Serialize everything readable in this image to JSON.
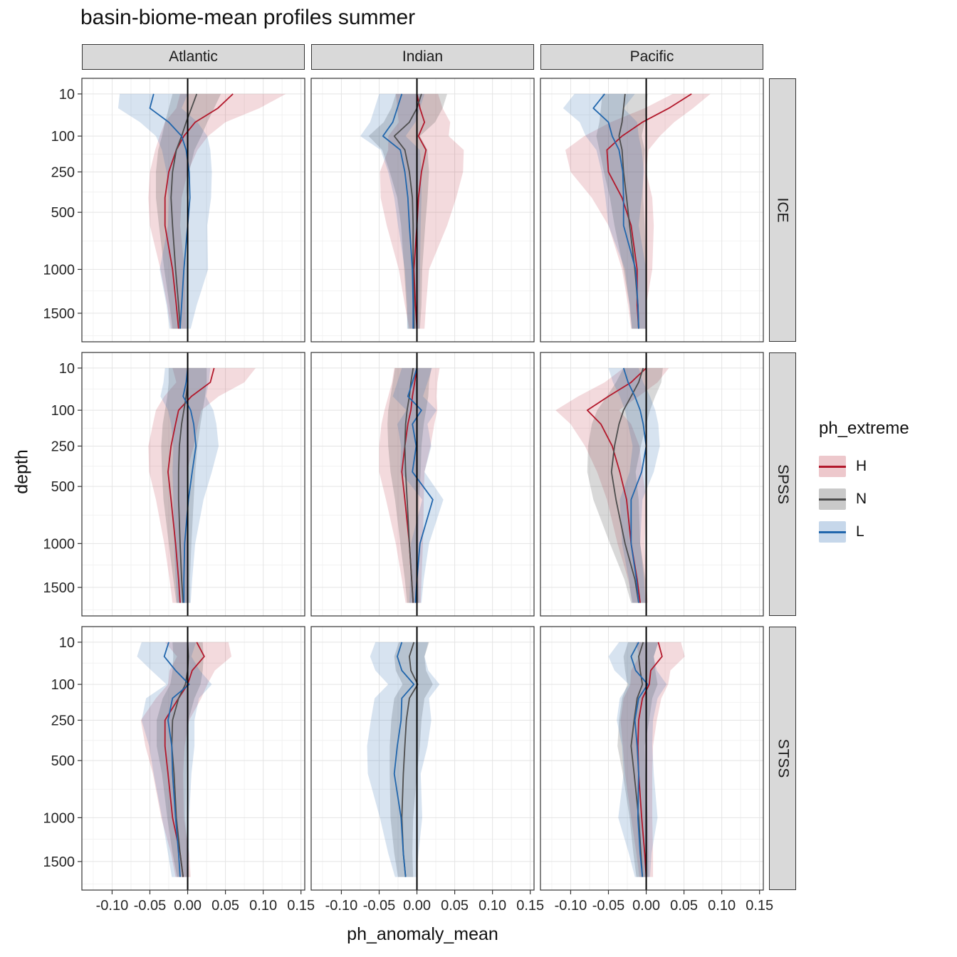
{
  "title": "basin-biome-mean profiles summer",
  "axes": {
    "x_label": "ph_anomaly_mean",
    "y_label": "depth",
    "x_ticks": [
      "-0.10",
      "-0.05",
      "0.00",
      "0.05",
      "0.10",
      "0.15"
    ],
    "x_tick_values": [
      -0.1,
      -0.05,
      0.0,
      0.05,
      0.1,
      0.15
    ],
    "y_ticks": [
      "10",
      "100",
      "250",
      "500",
      "1000",
      "1500"
    ],
    "y_tick_values": [
      10,
      100,
      250,
      500,
      1000,
      1500
    ],
    "x_domain": [
      -0.14,
      0.155
    ],
    "y_depth_domain": [
      0.4,
      1880
    ],
    "y_scale": "sqrt"
  },
  "facets": {
    "columns": [
      "Atlantic",
      "Indian",
      "Pacific"
    ],
    "rows": [
      "ICE",
      "SPSS",
      "STSS"
    ]
  },
  "legend": {
    "title": "ph_extreme",
    "entries": [
      {
        "label": "H"
      },
      {
        "label": "N"
      },
      {
        "label": "L"
      }
    ]
  },
  "chart_data": {
    "type": "line",
    "orientation": "vertical-depth-profile",
    "title": "basin-biome-mean profiles summer",
    "xlabel": "ph_anomaly_mean",
    "ylabel": "depth",
    "xlim": [
      -0.14,
      0.155
    ],
    "refline_x": 0,
    "grid": true,
    "legend_position": "right",
    "series_styles": {
      "H": {
        "color": "#b2182b",
        "ribbon_opacity": 0.16
      },
      "N": {
        "color": "#4d4d4d",
        "ribbon_opacity": 0.22
      },
      "L": {
        "color": "#2166ac",
        "ribbon_opacity": 0.18
      }
    },
    "depths": [
      10,
      30,
      60,
      100,
      150,
      250,
      400,
      600,
      1000,
      1400,
      1700
    ],
    "panels": [
      {
        "basin": "Atlantic",
        "biome": "ICE",
        "series": [
          {
            "name": "H",
            "values": [
              0.06,
              0.04,
              0.01,
              -0.005,
              -0.015,
              -0.025,
              -0.03,
              -0.03,
              -0.02,
              -0.015,
              -0.012
            ],
            "band": [
              0.07,
              0.055,
              0.04,
              0.032,
              0.028,
              0.025,
              0.022,
              0.02,
              0.016,
              0.012,
              0.01
            ]
          },
          {
            "name": "N",
            "values": [
              0.012,
              0.005,
              -0.002,
              -0.008,
              -0.015,
              -0.02,
              -0.022,
              -0.02,
              -0.016,
              -0.012,
              -0.01
            ],
            "band": [
              0.032,
              0.03,
              0.028,
              0.026,
              0.024,
              0.022,
              0.02,
              0.018,
              0.015,
              0.012,
              0.01
            ]
          },
          {
            "name": "L",
            "values": [
              -0.045,
              -0.05,
              -0.025,
              -0.008,
              -0.002,
              0.002,
              0.003,
              0.0,
              -0.005,
              -0.008,
              -0.01
            ],
            "band": [
              0.045,
              0.042,
              0.038,
              0.034,
              0.032,
              0.03,
              0.028,
              0.026,
              0.032,
              0.02,
              0.014
            ]
          }
        ]
      },
      {
        "basin": "Indian",
        "biome": "ICE",
        "series": [
          {
            "name": "H",
            "values": [
              0.0,
              0.004,
              0.01,
              0.002,
              0.012,
              0.006,
              0.002,
              0.0,
              -0.004,
              -0.002,
              0.0
            ],
            "band": [
              0.028,
              0.03,
              0.034,
              0.04,
              0.05,
              0.055,
              0.05,
              0.04,
              0.02,
              0.014,
              0.01
            ]
          },
          {
            "name": "N",
            "values": [
              0.006,
              0.0,
              -0.01,
              -0.03,
              -0.016,
              -0.01,
              -0.006,
              -0.005,
              -0.005,
              -0.004,
              -0.004
            ],
            "band": [
              0.034,
              0.034,
              0.034,
              0.034,
              0.03,
              0.026,
              0.02,
              0.016,
              0.012,
              0.01,
              0.008
            ]
          },
          {
            "name": "L",
            "values": [
              -0.02,
              -0.026,
              -0.032,
              -0.045,
              -0.022,
              -0.016,
              -0.012,
              -0.01,
              -0.006,
              -0.005,
              -0.005
            ],
            "band": [
              0.03,
              0.03,
              0.03,
              0.03,
              0.026,
              0.022,
              0.018,
              0.015,
              0.01,
              0.008,
              0.008
            ]
          }
        ]
      },
      {
        "basin": "Pacific",
        "biome": "ICE",
        "series": [
          {
            "name": "H",
            "values": [
              0.06,
              0.03,
              -0.005,
              -0.032,
              -0.052,
              -0.05,
              -0.032,
              -0.02,
              -0.012,
              -0.012,
              -0.01
            ],
            "band": [
              0.025,
              0.032,
              0.042,
              0.05,
              0.055,
              0.05,
              0.04,
              0.03,
              0.02,
              0.012,
              0.01
            ]
          },
          {
            "name": "N",
            "values": [
              -0.028,
              -0.03,
              -0.032,
              -0.036,
              -0.032,
              -0.03,
              -0.026,
              -0.022,
              -0.015,
              -0.011,
              -0.01
            ],
            "band": [
              0.03,
              0.03,
              0.03,
              0.03,
              0.03,
              0.026,
              0.022,
              0.02,
              0.015,
              0.011,
              0.009
            ]
          },
          {
            "name": "L",
            "values": [
              -0.055,
              -0.07,
              -0.05,
              -0.045,
              -0.036,
              -0.031,
              -0.03,
              -0.03,
              -0.014,
              -0.011,
              -0.01
            ],
            "band": [
              0.04,
              0.04,
              0.038,
              0.035,
              0.03,
              0.028,
              0.024,
              0.02,
              0.014,
              0.011,
              0.009
            ]
          }
        ]
      },
      {
        "basin": "Atlantic",
        "biome": "SPSS",
        "series": [
          {
            "name": "H",
            "values": [
              0.035,
              0.03,
              0.005,
              -0.012,
              -0.016,
              -0.022,
              -0.026,
              -0.022,
              -0.016,
              -0.012,
              -0.01
            ],
            "band": [
              0.055,
              0.045,
              0.036,
              0.03,
              0.03,
              0.03,
              0.025,
              0.02,
              0.015,
              0.012,
              0.01
            ]
          },
          {
            "name": "N",
            "values": [
              0.0,
              0.0,
              -0.002,
              -0.005,
              -0.008,
              -0.011,
              -0.012,
              -0.012,
              -0.01,
              -0.008,
              -0.006
            ],
            "band": [
              0.025,
              0.025,
              0.025,
              0.025,
              0.025,
              0.024,
              0.022,
              0.02,
              0.015,
              0.011,
              0.009
            ]
          },
          {
            "name": "L",
            "values": [
              0.0,
              -0.002,
              -0.006,
              0.004,
              0.008,
              0.011,
              0.006,
              0.001,
              -0.004,
              -0.005,
              -0.005
            ],
            "band": [
              0.03,
              0.03,
              0.03,
              0.03,
              0.03,
              0.03,
              0.026,
              0.02,
              0.014,
              0.011,
              0.009
            ]
          }
        ]
      },
      {
        "basin": "Indian",
        "biome": "SPSS",
        "series": [
          {
            "name": "H",
            "values": [
              0.0,
              -0.003,
              -0.006,
              -0.008,
              -0.012,
              -0.016,
              -0.02,
              -0.016,
              -0.01,
              -0.007,
              -0.005
            ],
            "band": [
              0.03,
              0.03,
              0.032,
              0.035,
              0.035,
              0.034,
              0.03,
              0.025,
              0.018,
              0.013,
              0.01
            ]
          },
          {
            "name": "N",
            "values": [
              -0.005,
              -0.008,
              -0.01,
              -0.013,
              -0.015,
              -0.016,
              -0.015,
              -0.013,
              -0.01,
              -0.007,
              -0.005
            ],
            "band": [
              0.024,
              0.024,
              0.025,
              0.025,
              0.024,
              0.022,
              0.02,
              0.016,
              0.012,
              0.009,
              0.008
            ]
          },
          {
            "name": "L",
            "values": [
              0.0,
              -0.006,
              -0.012,
              0.006,
              -0.006,
              -0.001,
              -0.006,
              0.021,
              0.004,
              0.0,
              -0.002
            ],
            "band": [
              0.02,
              0.02,
              0.02,
              0.02,
              0.02,
              0.02,
              0.016,
              0.014,
              0.012,
              0.009,
              0.008
            ]
          }
        ]
      },
      {
        "basin": "Pacific",
        "biome": "SPSS",
        "series": [
          {
            "name": "H",
            "values": [
              0.0,
              -0.02,
              -0.05,
              -0.078,
              -0.06,
              -0.045,
              -0.035,
              -0.026,
              -0.02,
              -0.012,
              -0.008
            ],
            "band": [
              0.03,
              0.035,
              0.04,
              0.042,
              0.04,
              0.036,
              0.03,
              0.026,
              0.018,
              0.012,
              0.01
            ]
          },
          {
            "name": "N",
            "values": [
              -0.004,
              -0.01,
              -0.02,
              -0.03,
              -0.036,
              -0.042,
              -0.046,
              -0.04,
              -0.028,
              -0.015,
              -0.01
            ],
            "band": [
              0.026,
              0.03,
              0.032,
              0.035,
              0.036,
              0.035,
              0.032,
              0.03,
              0.02,
              0.014,
              0.01
            ]
          },
          {
            "name": "L",
            "values": [
              -0.03,
              -0.024,
              -0.015,
              -0.008,
              -0.004,
              0.0,
              -0.006,
              -0.02,
              -0.02,
              -0.013,
              -0.01
            ],
            "band": [
              0.02,
              0.02,
              0.02,
              0.02,
              0.02,
              0.018,
              0.016,
              0.015,
              0.012,
              0.01,
              0.009
            ]
          }
        ]
      },
      {
        "basin": "Atlantic",
        "biome": "STSS",
        "series": [
          {
            "name": "H",
            "values": [
              0.012,
              0.022,
              0.006,
              0.0,
              -0.012,
              -0.03,
              -0.03,
              -0.026,
              -0.02,
              -0.01,
              -0.006
            ],
            "band": [
              0.042,
              0.036,
              0.03,
              0.026,
              0.03,
              0.032,
              0.026,
              0.02,
              0.015,
              0.012,
              0.01
            ]
          },
          {
            "name": "N",
            "values": [
              0.0,
              0.001,
              0.0,
              -0.003,
              -0.012,
              -0.02,
              -0.021,
              -0.018,
              -0.015,
              -0.01,
              -0.006
            ],
            "band": [
              0.02,
              0.02,
              0.02,
              0.02,
              0.021,
              0.021,
              0.02,
              0.016,
              0.012,
              0.01,
              0.008
            ]
          },
          {
            "name": "L",
            "values": [
              -0.025,
              -0.031,
              -0.016,
              0.002,
              -0.02,
              -0.026,
              -0.021,
              -0.02,
              -0.016,
              -0.012,
              -0.01
            ],
            "band": [
              0.036,
              0.036,
              0.032,
              0.03,
              0.035,
              0.035,
              0.03,
              0.025,
              0.018,
              0.014,
              0.011
            ]
          }
        ]
      },
      {
        "basin": "Indian",
        "biome": "STSS",
        "series": [
          {
            "name": "N",
            "values": [
              -0.004,
              -0.01,
              -0.008,
              0.001,
              -0.01,
              -0.014,
              -0.016,
              -0.018,
              -0.02,
              -0.018,
              -0.015
            ],
            "band": [
              0.02,
              0.02,
              0.02,
              0.02,
              0.02,
              0.02,
              0.02,
              0.018,
              0.015,
              0.012,
              0.01
            ]
          },
          {
            "name": "L",
            "values": [
              -0.02,
              -0.026,
              -0.02,
              -0.004,
              -0.02,
              -0.021,
              -0.026,
              -0.03,
              -0.021,
              -0.018,
              -0.015
            ],
            "band": [
              0.035,
              0.036,
              0.035,
              0.034,
              0.036,
              0.04,
              0.04,
              0.035,
              0.028,
              0.02,
              0.014
            ]
          }
        ]
      },
      {
        "basin": "Pacific",
        "biome": "STSS",
        "series": [
          {
            "name": "H",
            "values": [
              0.016,
              0.021,
              0.006,
              0.004,
              -0.005,
              -0.01,
              -0.011,
              -0.01,
              -0.006,
              -0.002,
              0.0
            ],
            "band": [
              0.03,
              0.03,
              0.026,
              0.025,
              0.025,
              0.024,
              0.02,
              0.018,
              0.014,
              0.011,
              0.009
            ]
          },
          {
            "name": "N",
            "values": [
              -0.004,
              -0.01,
              -0.008,
              -0.005,
              -0.012,
              -0.016,
              -0.02,
              -0.016,
              -0.01,
              -0.007,
              -0.005
            ],
            "band": [
              0.02,
              0.02,
              0.02,
              0.02,
              0.02,
              0.02,
              0.018,
              0.015,
              0.012,
              0.01,
              0.008
            ]
          },
          {
            "name": "L",
            "values": [
              -0.01,
              -0.02,
              -0.014,
              0.002,
              -0.01,
              -0.015,
              -0.012,
              -0.01,
              -0.011,
              -0.008,
              -0.005
            ],
            "band": [
              0.026,
              0.03,
              0.028,
              0.025,
              0.025,
              0.024,
              0.02,
              0.02,
              0.026,
              0.015,
              0.01
            ]
          }
        ]
      }
    ]
  }
}
